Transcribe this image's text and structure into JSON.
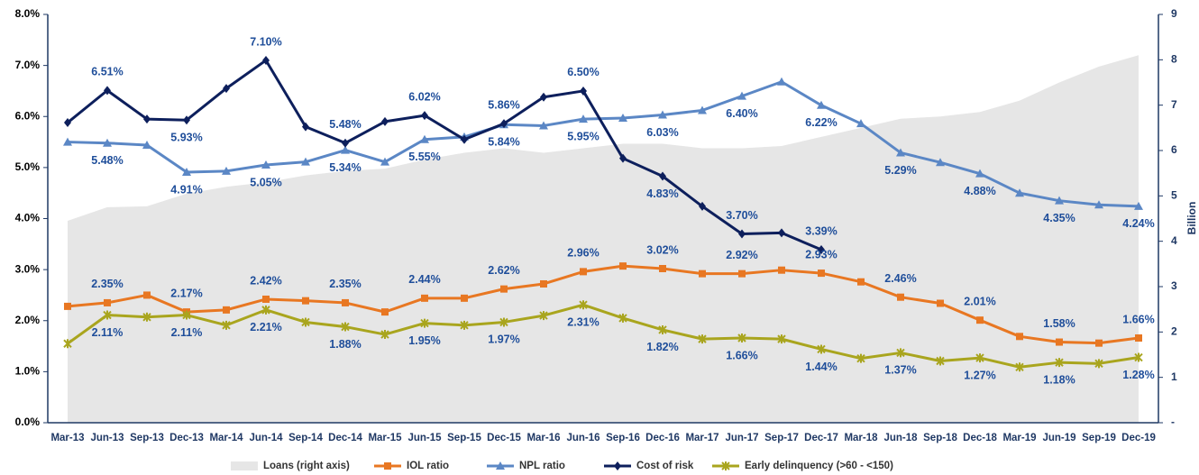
{
  "chart_data": {
    "type": "line",
    "categories": [
      "Mar-13",
      "Jun-13",
      "Sep-13",
      "Dec-13",
      "Mar-14",
      "Jun-14",
      "Sep-14",
      "Dec-14",
      "Mar-15",
      "Jun-15",
      "Sep-15",
      "Dec-15",
      "Mar-16",
      "Jun-16",
      "Sep-16",
      "Dec-16",
      "Mar-17",
      "Jun-17",
      "Sep-17",
      "Dec-17",
      "Mar-18",
      "Jun-18",
      "Sep-18",
      "Dec-18",
      "Mar-19",
      "Jun-19",
      "Sep-19",
      "Dec-19"
    ],
    "y2_label": "Billion",
    "ylim": [
      0,
      8
    ],
    "yticks": [
      {
        "value": 0,
        "label": "0.0%"
      },
      {
        "value": 1,
        "label": "1.0%"
      },
      {
        "value": 2,
        "label": "2.0%"
      },
      {
        "value": 3,
        "label": "3.0%"
      },
      {
        "value": 4,
        "label": "4.0%"
      },
      {
        "value": 5,
        "label": "5.0%"
      },
      {
        "value": 6,
        "label": "6.0%"
      },
      {
        "value": 7,
        "label": "7.0%"
      },
      {
        "value": 8,
        "label": "8.0%"
      }
    ],
    "y2lim": [
      0,
      9
    ],
    "y2ticks": [
      {
        "value": 0,
        "label": "-"
      },
      1,
      2,
      3,
      4,
      5,
      6,
      7,
      8,
      9
    ],
    "series": [
      {
        "name": "Loans (right axis)",
        "type": "area",
        "axis": "y2",
        "color": "#E6E6E6",
        "values": [
          4.45,
          4.75,
          4.77,
          5.05,
          5.2,
          5.3,
          5.45,
          5.55,
          5.6,
          5.8,
          5.95,
          6.05,
          5.95,
          6.05,
          6.15,
          6.15,
          6.05,
          6.05,
          6.1,
          6.3,
          6.5,
          6.7,
          6.75,
          6.85,
          7.1,
          7.5,
          7.85,
          8.1
        ]
      },
      {
        "name": "IOL ratio",
        "color": "#E87722",
        "values": [
          2.28,
          2.35,
          2.5,
          2.17,
          2.21,
          2.42,
          2.39,
          2.35,
          2.17,
          2.44,
          2.44,
          2.62,
          2.72,
          2.96,
          3.07,
          3.02,
          2.92,
          2.92,
          2.99,
          2.93,
          2.76,
          2.46,
          2.34,
          2.01,
          1.69,
          1.58,
          1.56,
          1.66
        ],
        "value_labels": [
          null,
          "2.35%",
          null,
          "2.17%",
          null,
          "2.42%",
          null,
          "2.35%",
          null,
          "2.44%",
          null,
          "2.62%",
          null,
          "2.96%",
          null,
          "3.02%",
          null,
          "2.92%",
          null,
          "2.93%",
          null,
          "2.46%",
          null,
          "2.01%",
          null,
          "1.58%",
          null,
          "1.66%"
        ]
      },
      {
        "name": "NPL ratio",
        "color": "#5B87C5",
        "values": [
          5.5,
          5.48,
          5.44,
          4.91,
          4.93,
          5.05,
          5.11,
          5.34,
          5.11,
          5.55,
          5.6,
          5.84,
          5.82,
          5.95,
          5.97,
          6.03,
          6.12,
          6.4,
          6.68,
          6.22,
          5.86,
          5.29,
          5.1,
          4.88,
          4.5,
          4.35,
          4.27,
          4.24
        ],
        "value_labels": [
          null,
          "5.48%",
          null,
          "4.91%",
          null,
          "5.05%",
          null,
          "5.34%",
          null,
          "5.55%",
          null,
          "5.84%",
          null,
          "5.95%",
          null,
          "6.03%",
          null,
          "6.40%",
          null,
          "6.22%",
          null,
          "5.29%",
          null,
          "4.88%",
          null,
          "4.35%",
          null,
          "4.24%"
        ]
      },
      {
        "name": "Cost of risk",
        "color": "#0D1F5C",
        "values": [
          5.88,
          6.51,
          5.95,
          5.93,
          6.55,
          7.1,
          5.8,
          5.48,
          5.9,
          6.02,
          5.55,
          5.86,
          6.38,
          6.5,
          5.18,
          4.83,
          4.24,
          3.7,
          3.72,
          3.39,
          null,
          null,
          null,
          null,
          null,
          null,
          null,
          null
        ],
        "value_labels": [
          null,
          "6.51%",
          null,
          "5.93%",
          null,
          "7.10%",
          null,
          "5.48%",
          null,
          "6.02%",
          null,
          "5.86%",
          null,
          "6.50%",
          null,
          "4.83%",
          null,
          "3.70%",
          null,
          "3.39%",
          null,
          null,
          null,
          null,
          null,
          null,
          null,
          null
        ]
      },
      {
        "name": "Early delinquency (>60 - <150)",
        "color": "#A9A51E",
        "values": [
          1.55,
          2.11,
          2.07,
          2.11,
          1.91,
          2.21,
          1.97,
          1.88,
          1.73,
          1.95,
          1.91,
          1.97,
          2.1,
          2.31,
          2.05,
          1.82,
          1.64,
          1.66,
          1.64,
          1.44,
          1.26,
          1.37,
          1.21,
          1.27,
          1.09,
          1.18,
          1.16,
          1.28
        ],
        "value_labels": [
          null,
          "2.11%",
          null,
          "2.11%",
          null,
          "2.21%",
          null,
          "1.88%",
          null,
          "1.95%",
          null,
          "1.97%",
          null,
          "2.31%",
          null,
          "1.82%",
          null,
          "1.66%",
          null,
          "1.44%",
          null,
          "1.37%",
          null,
          "1.27%",
          null,
          "1.18%",
          null,
          "1.28%"
        ]
      }
    ]
  }
}
